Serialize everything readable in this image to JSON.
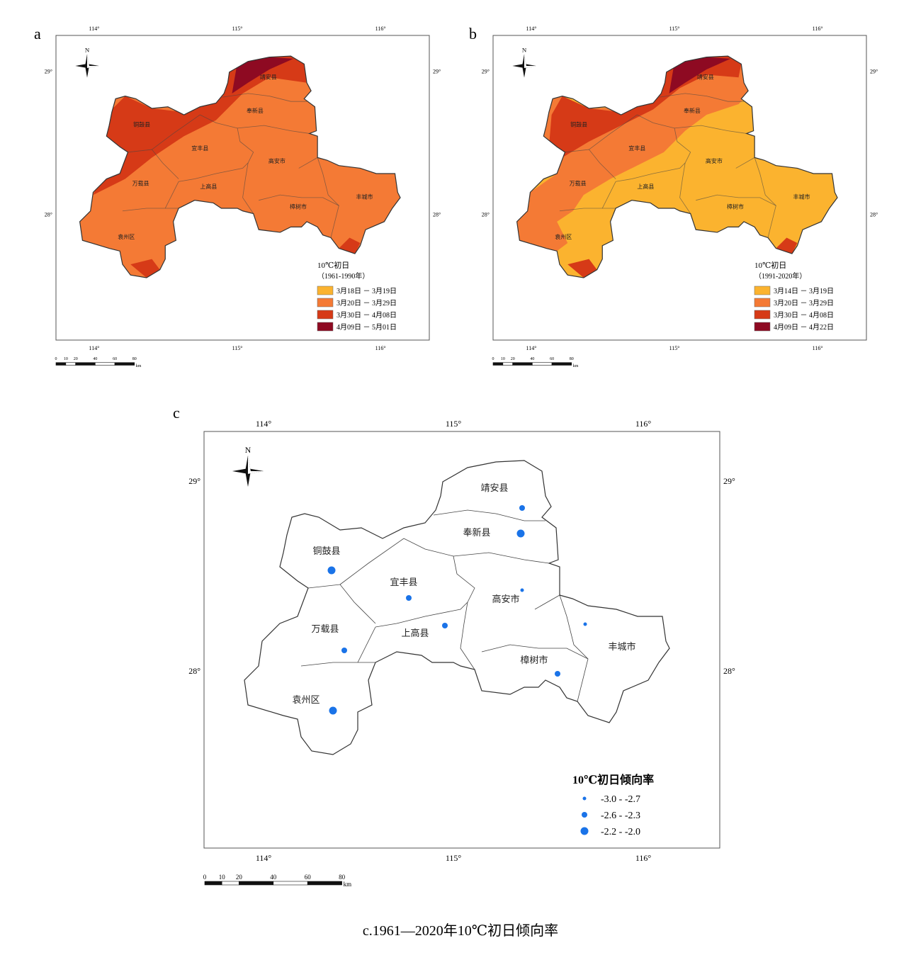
{
  "panels": [
    {
      "label": "a",
      "legend": {
        "title": "10℃初日",
        "period": "（1961-1990年）",
        "items": [
          {
            "label": "3月18日 － 3月19日",
            "color": "#fbb32f"
          },
          {
            "label": "3月20日 － 3月29日",
            "color": "#f47a35"
          },
          {
            "label": "3月30日 － 4月08日",
            "color": "#d63a17"
          },
          {
            "label": "4月09日 － 5月01日",
            "color": "#8e0a22"
          }
        ]
      }
    },
    {
      "label": "b",
      "legend": {
        "title": "10℃初日",
        "period": "（1991-2020年）",
        "items": [
          {
            "label": "3月14日 － 3月19日",
            "color": "#fbb32f"
          },
          {
            "label": "3月20日 － 3月29日",
            "color": "#f47a35"
          },
          {
            "label": "3月30日 － 4月08日",
            "color": "#d63a17"
          },
          {
            "label": "4月09日 － 4月22日",
            "color": "#8e0a22"
          }
        ]
      }
    },
    {
      "label": "c",
      "legend": {
        "title": "10℃初日倾向率",
        "color": "#1a73e8",
        "items": [
          {
            "label": "-3.0 - -2.7"
          },
          {
            "label": "-2.6 - -2.3"
          },
          {
            "label": "-2.2 - -2.0"
          }
        ]
      }
    }
  ],
  "lon_ticks": [
    "114°",
    "115°",
    "116°"
  ],
  "lat_ticks": [
    "29°",
    "28°"
  ],
  "north": "N",
  "counties": [
    "靖安县",
    "奉新县",
    "铜鼓县",
    "宜丰县",
    "高安市",
    "万载县",
    "上高县",
    "丰城市",
    "樟树市",
    "袁州区"
  ],
  "scale": [
    "0",
    "10",
    "20",
    "40",
    "60",
    "80"
  ],
  "scale_unit": "km",
  "caption": "c.1961—2020年10℃初日倾向率"
}
